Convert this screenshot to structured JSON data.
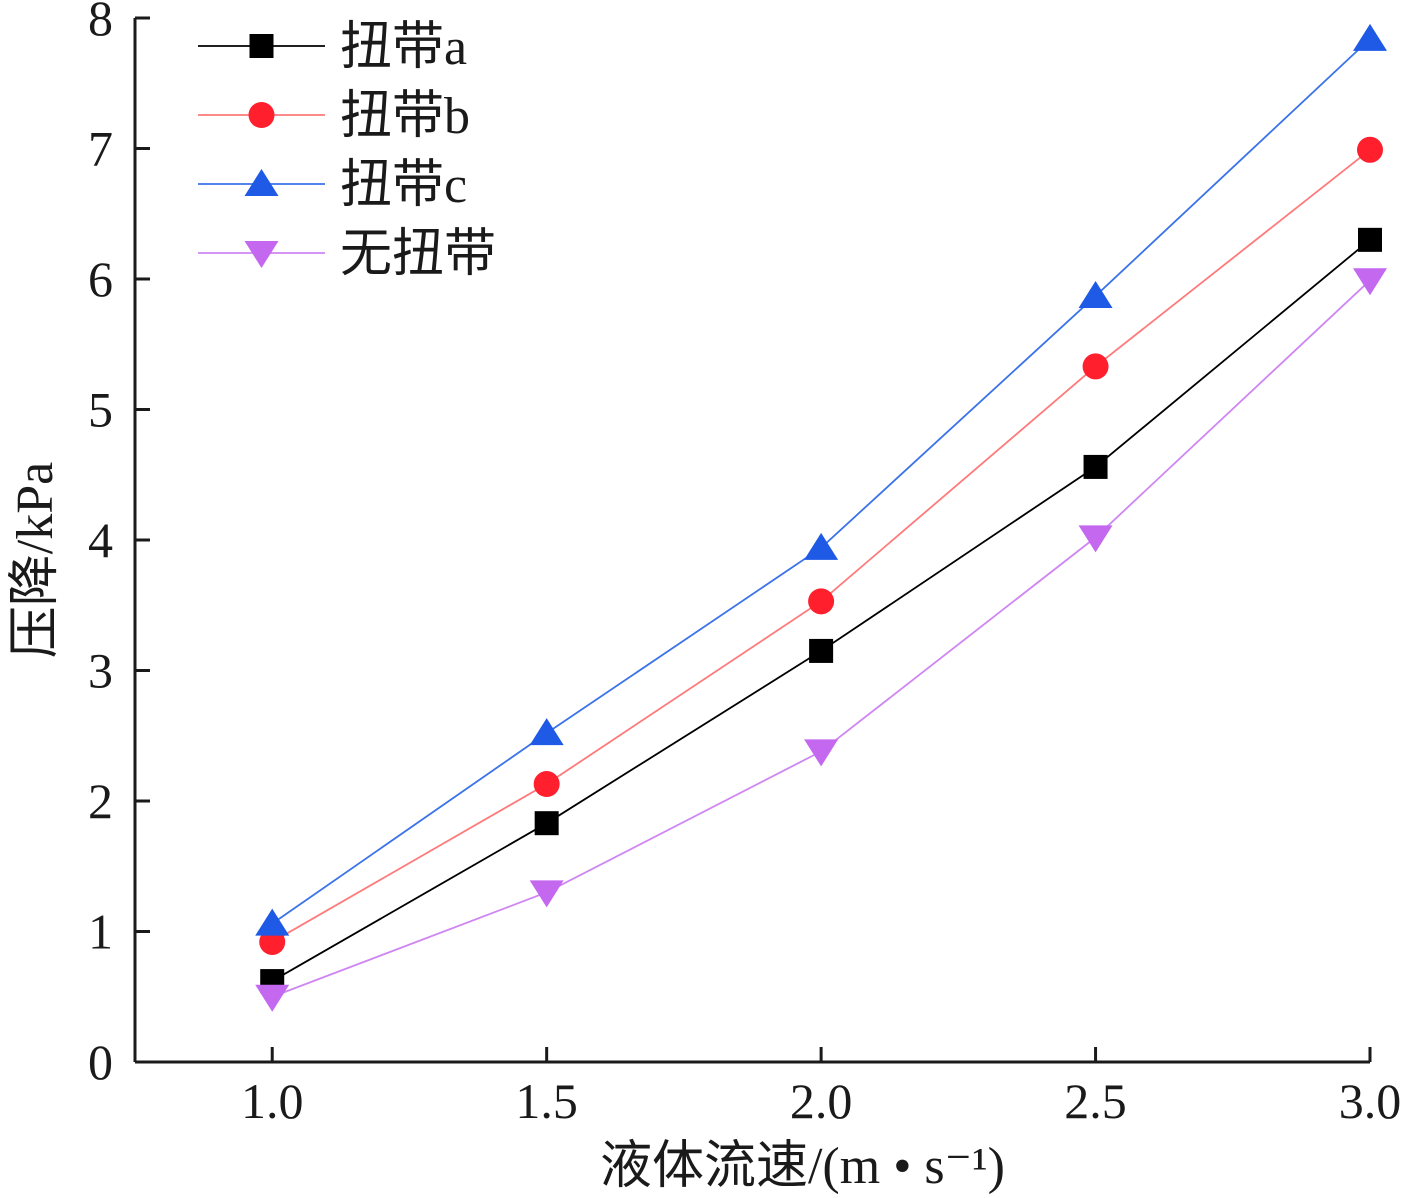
{
  "chart_data": {
    "type": "line",
    "xlabel": "液体流速/(m • s⁻¹)",
    "ylabel": "压降/kPa",
    "x": [
      1.0,
      1.5,
      2.0,
      2.5,
      3.0
    ],
    "x_tick_labels": [
      "1.0",
      "1.5",
      "2.0",
      "2.5",
      "3.0"
    ],
    "y_tick_labels": [
      "0",
      "1",
      "2",
      "3",
      "4",
      "5",
      "6",
      "7",
      "8"
    ],
    "xlim": [
      0.75,
      3.0
    ],
    "ylim": [
      0,
      8
    ],
    "grid": false,
    "legend_position": "top-left",
    "series": [
      {
        "name": "扭带a",
        "marker": "square",
        "color": "#000000",
        "line_color": "#000000",
        "values": [
          0.62,
          1.83,
          3.15,
          4.56,
          6.3
        ]
      },
      {
        "name": "扭带b",
        "marker": "circle",
        "color": "#ff1f2d",
        "line_color": "#ff7a7a",
        "values": [
          0.92,
          2.13,
          3.53,
          5.33,
          6.99
        ]
      },
      {
        "name": "扭带c",
        "marker": "triangle-up",
        "color": "#1e5ae6",
        "line_color": "#3b73e8",
        "values": [
          1.06,
          2.52,
          3.94,
          5.87,
          7.84
        ]
      },
      {
        "name": "无扭带",
        "marker": "triangle-down",
        "color": "#c468f0",
        "line_color": "#cf86f2",
        "values": [
          0.5,
          1.3,
          2.38,
          4.02,
          5.99
        ]
      }
    ]
  }
}
